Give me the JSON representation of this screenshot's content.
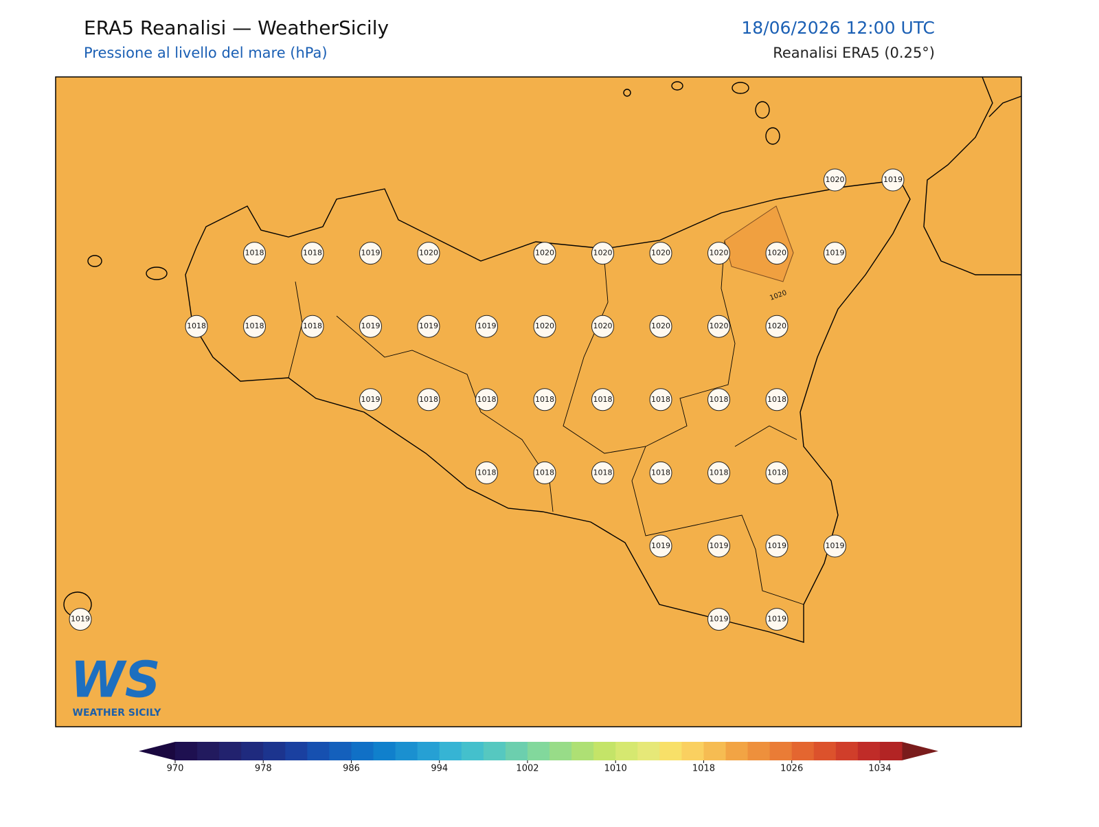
{
  "header": {
    "title": "ERA5 Reanalisi — WeatherSicily",
    "subtitle": "Pressione al livello del mare (hPa)",
    "datetime": "18/06/2026 12:00 UTC",
    "source": "Reanalisi ERA5 (0.25°)"
  },
  "map": {
    "background": "#f3b04a",
    "highlight_color": "#f0a040",
    "contour_label": "1020",
    "stations": [
      [
        null,
        null,
        null,
        null,
        null,
        null,
        null,
        null,
        null,
        null,
        null,
        null,
        null,
        1020,
        1019
      ],
      [
        null,
        null,
        null,
        1018,
        1018,
        1019,
        1020,
        null,
        1020,
        1020,
        1020,
        1020,
        1020,
        1019,
        null
      ],
      [
        null,
        null,
        1018,
        1018,
        1018,
        1019,
        1019,
        1019,
        1020,
        1020,
        1020,
        1020,
        1020,
        null,
        null
      ],
      [
        null,
        null,
        null,
        null,
        null,
        1019,
        1018,
        1018,
        1018,
        1018,
        1018,
        1018,
        1018,
        null,
        null
      ],
      [
        null,
        null,
        null,
        null,
        null,
        null,
        null,
        1018,
        1018,
        1018,
        1018,
        1018,
        1018,
        null,
        null
      ],
      [
        null,
        null,
        null,
        null,
        null,
        null,
        null,
        null,
        null,
        null,
        1019,
        1019,
        1019,
        1019,
        null
      ],
      [
        1019,
        null,
        null,
        null,
        null,
        null,
        null,
        null,
        null,
        null,
        null,
        1019,
        1019,
        null,
        null
      ]
    ],
    "logo": {
      "mark": "WS",
      "text": "WEATHER SICILY"
    }
  },
  "colorbar": {
    "clim": [
      970,
      1036
    ],
    "ticks": [
      970,
      978,
      986,
      994,
      1002,
      1010,
      1018,
      1026,
      1034
    ],
    "under": "#1a0840",
    "over": "#7a1c1c",
    "colors": [
      "#1e1050",
      "#221a5e",
      "#22226e",
      "#1f2a7e",
      "#1c348e",
      "#1a40a0",
      "#1650b0",
      "#1460bc",
      "#1070c6",
      "#1080cc",
      "#1a90d0",
      "#26a0d4",
      "#36b4d4",
      "#44c0cc",
      "#56c8c0",
      "#6ccfae",
      "#82d89c",
      "#98dc88",
      "#aee074",
      "#c4e468",
      "#d6e870",
      "#e6e878",
      "#f8e068",
      "#fad060",
      "#f6bc52",
      "#f2a444",
      "#ee903c",
      "#ea7c36",
      "#e46630",
      "#dc522c",
      "#d03e2a",
      "#c02c28",
      "#b22424"
    ]
  }
}
